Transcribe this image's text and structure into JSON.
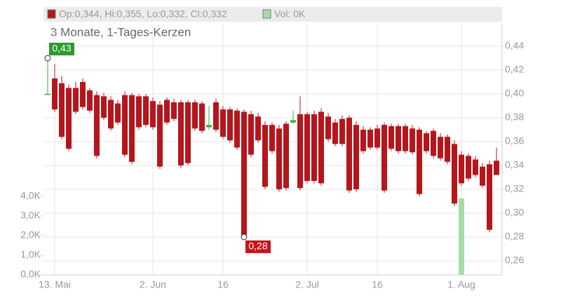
{
  "chart_data": {
    "type": "candlestick",
    "legend_text": "Op:0,344, Hi:0,355, Lo:0,332, Cl:0,332",
    "volume_legend_text": "Vol: 0K",
    "subtitle": "3 Monate, 1-Tages-Kerzen",
    "categories": [
      null,
      "13. Mai",
      null,
      null,
      null,
      null,
      null,
      null,
      null,
      null,
      null,
      null,
      null,
      null,
      null,
      "2. Jun",
      null,
      null,
      null,
      null,
      null,
      null,
      null,
      null,
      null,
      "16",
      null,
      null,
      null,
      null,
      null,
      null,
      null,
      null,
      null,
      null,
      null,
      "2. Jul",
      null,
      null,
      null,
      null,
      null,
      null,
      null,
      null,
      null,
      "16",
      null,
      null,
      null,
      null,
      null,
      null,
      null,
      null,
      null,
      null,
      null,
      "1. Aug",
      null,
      null,
      null,
      null,
      null
    ],
    "open": [
      0.4,
      0.413,
      0.409,
      0.405,
      0.405,
      0.41,
      0.403,
      0.399,
      0.398,
      0.395,
      0.392,
      0.399,
      0.399,
      0.398,
      0.398,
      0.394,
      0.391,
      0.395,
      0.393,
      0.393,
      0.393,
      0.393,
      0.392,
      0.372,
      0.393,
      0.387,
      0.387,
      0.386,
      0.385,
      0.383,
      0.381,
      0.374,
      0.374,
      0.371,
      0.375,
      0.376,
      0.383,
      0.383,
      0.383,
      0.385,
      0.381,
      0.376,
      0.379,
      0.38,
      0.374,
      0.37,
      0.37,
      0.371,
      0.374,
      0.373,
      0.373,
      0.373,
      0.371,
      0.37,
      0.367,
      0.369,
      0.364,
      0.364,
      0.358,
      0.349,
      0.348,
      0.345,
      0.339,
      0.341,
      0.344
    ],
    "high": [
      0.43,
      0.425,
      0.415,
      0.408,
      0.41,
      0.413,
      0.405,
      0.402,
      0.401,
      0.398,
      0.395,
      0.402,
      0.401,
      0.4,
      0.4,
      0.397,
      0.394,
      0.397,
      0.396,
      0.395,
      0.395,
      0.395,
      0.394,
      0.39,
      0.396,
      0.39,
      0.389,
      0.388,
      0.387,
      0.386,
      0.384,
      0.377,
      0.376,
      0.374,
      0.377,
      0.386,
      0.398,
      0.385,
      0.386,
      0.388,
      0.384,
      0.379,
      0.382,
      0.382,
      0.377,
      0.373,
      0.372,
      0.374,
      0.376,
      0.375,
      0.375,
      0.375,
      0.374,
      0.372,
      0.369,
      0.371,
      0.367,
      0.366,
      0.361,
      0.352,
      0.35,
      0.348,
      0.342,
      0.344,
      0.355
    ],
    "low": [
      0.4,
      0.385,
      0.362,
      0.352,
      0.383,
      0.387,
      0.384,
      0.346,
      0.378,
      0.369,
      0.374,
      0.347,
      0.341,
      0.37,
      0.372,
      0.37,
      0.337,
      0.374,
      0.377,
      0.338,
      0.34,
      0.369,
      0.367,
      0.37,
      0.368,
      0.362,
      0.359,
      0.353,
      0.28,
      0.347,
      0.359,
      0.32,
      0.35,
      0.318,
      0.319,
      0.375,
      0.319,
      0.325,
      0.325,
      0.323,
      0.36,
      0.356,
      0.356,
      0.317,
      0.318,
      0.35,
      0.353,
      0.353,
      0.317,
      0.352,
      0.35,
      0.35,
      0.349,
      0.314,
      0.35,
      0.346,
      0.344,
      0.341,
      0.306,
      0.323,
      0.327,
      0.33,
      0.321,
      0.284,
      0.332
    ],
    "close": [
      0.4,
      0.387,
      0.364,
      0.354,
      0.385,
      0.389,
      0.386,
      0.348,
      0.38,
      0.371,
      0.376,
      0.349,
      0.343,
      0.372,
      0.374,
      0.372,
      0.339,
      0.376,
      0.379,
      0.34,
      0.342,
      0.371,
      0.369,
      0.374,
      0.37,
      0.364,
      0.361,
      0.355,
      0.28,
      0.349,
      0.361,
      0.322,
      0.352,
      0.32,
      0.321,
      0.378,
      0.321,
      0.327,
      0.327,
      0.325,
      0.362,
      0.358,
      0.358,
      0.319,
      0.32,
      0.352,
      0.355,
      0.355,
      0.319,
      0.354,
      0.352,
      0.352,
      0.351,
      0.316,
      0.352,
      0.348,
      0.346,
      0.343,
      0.308,
      0.325,
      0.329,
      0.332,
      0.323,
      0.286,
      0.332
    ],
    "volume": [
      0,
      0,
      0,
      0,
      0,
      0,
      0,
      0,
      0,
      0,
      0,
      0,
      0,
      0,
      0,
      0,
      0,
      0,
      0,
      0,
      0,
      0,
      0,
      0,
      0,
      0,
      0,
      0,
      0,
      0,
      0,
      0,
      0,
      0,
      0,
      0,
      0,
      0,
      0,
      0,
      0,
      0,
      0,
      0,
      0,
      0,
      0,
      0,
      0,
      0,
      0,
      0,
      0,
      0,
      0,
      0,
      0,
      0,
      0,
      3900,
      0,
      0,
      0,
      0,
      0
    ],
    "up_color": "#3cae3c",
    "down_color": "#b5161c",
    "volume_color": "#a6dca6",
    "ylim": [
      0.2482,
      0.4582
    ],
    "yticks": [
      {
        "value": 0.26,
        "label": "0,26"
      },
      {
        "value": 0.28,
        "label": "0,28"
      },
      {
        "value": 0.3,
        "label": "0,30"
      },
      {
        "value": 0.32,
        "label": "0,32"
      },
      {
        "value": 0.34,
        "label": "0,34"
      },
      {
        "value": 0.36,
        "label": "0,36"
      },
      {
        "value": 0.38,
        "label": "0,38"
      },
      {
        "value": 0.4,
        "label": "0,40"
      },
      {
        "value": 0.42,
        "label": "0,42"
      },
      {
        "value": 0.44,
        "label": "0,44"
      }
    ],
    "y2lim": [
      0,
      12750
    ],
    "y2ticks": [
      {
        "value": 0,
        "label": "0,0K"
      },
      {
        "value": 1000,
        "label": "1,0K"
      },
      {
        "value": 2000,
        "label": "2,0K"
      },
      {
        "value": 3000,
        "label": "3,0K"
      },
      {
        "value": 4000,
        "label": "4,0K"
      }
    ],
    "annotations": [
      {
        "label": "0,43",
        "value": 0.43,
        "color": "#2b9a2b"
      },
      {
        "label": "0,28",
        "value": 0.28,
        "color": "#c8141c"
      }
    ],
    "grid": true
  }
}
